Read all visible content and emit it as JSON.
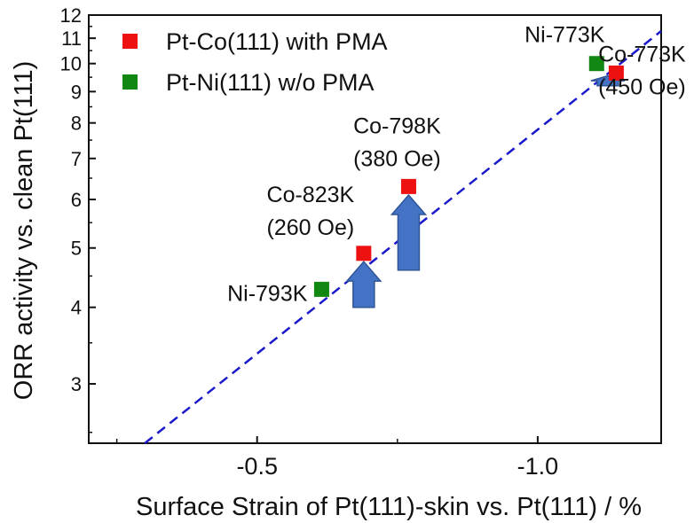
{
  "chart_data": {
    "type": "scatter",
    "xlabel": "Surface Strain of Pt(111)-skin vs. Pt(111) / %",
    "ylabel": "ORR activity vs. clean Pt(111)",
    "x_reversed": true,
    "xlim": [
      -0.2,
      -1.22
    ],
    "ylim": [
      2.4,
      12
    ],
    "y_scale": "log",
    "x_ticks": [
      -0.5,
      -1.0
    ],
    "x_tick_labels": [
      "-0.5",
      "-1.0"
    ],
    "y_ticks": [
      3,
      4,
      5,
      6,
      7,
      8,
      9,
      10,
      11,
      12
    ],
    "y_tick_labels": [
      "3",
      "4",
      "5",
      "6",
      "7",
      "8",
      "9",
      "10",
      "11",
      "12"
    ],
    "grid": false,
    "legend_position": "top-left",
    "series": [
      {
        "name": "Pt-Co(111) with PMA",
        "color": "#ee1111",
        "marker": "square",
        "points": [
          {
            "x": -0.69,
            "y": 4.9,
            "label_lines": [
              "Co-823K",
              "(260 Oe)"
            ]
          },
          {
            "x": -0.77,
            "y": 6.3,
            "label_lines": [
              "Co-798K",
              "(380 Oe)"
            ]
          },
          {
            "x": -1.14,
            "y": 9.65,
            "label_lines": [
              "Co-773K",
              "(450 Oe)"
            ]
          }
        ]
      },
      {
        "name": "Pt-Ni(111) w/o PMA",
        "color": "#118811",
        "marker": "square",
        "points": [
          {
            "x": -0.615,
            "y": 4.28,
            "label_lines": [
              "Ni-793K"
            ]
          },
          {
            "x": -1.105,
            "y": 10.0,
            "label_lines": [
              "Ni-773K"
            ]
          }
        ]
      }
    ],
    "trend_line": {
      "style": "dashed",
      "color": "#1a1acc",
      "points": [
        {
          "x": -0.3,
          "y": 2.4
        },
        {
          "x": -1.22,
          "y": 11.3
        }
      ]
    },
    "arrows": [
      {
        "x": -0.69,
        "y_from": 4.0,
        "y_to": 4.75,
        "color": "#4472c4"
      },
      {
        "x": -0.77,
        "y_from": 4.6,
        "y_to": 6.1,
        "color": "#4472c4"
      },
      {
        "x": -1.125,
        "y_from": 9.2,
        "y_to": 9.55,
        "color": "#4472c4"
      }
    ]
  }
}
